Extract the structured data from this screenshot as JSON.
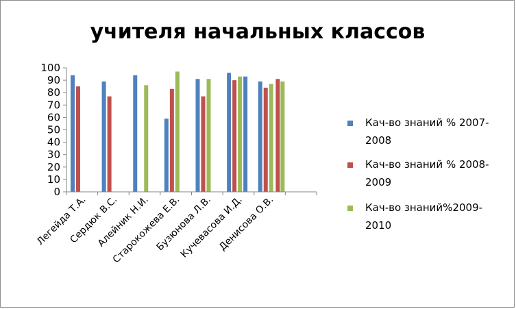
{
  "chart_data": {
    "type": "bar",
    "title": "учителя начальных классов",
    "xlabel": "",
    "ylabel": "",
    "ylim": [
      0,
      100
    ],
    "yticks": [
      0,
      10,
      20,
      30,
      40,
      50,
      60,
      70,
      80,
      90,
      100
    ],
    "grid": false,
    "legend_position": "right",
    "categories": [
      "Легейда Т.А.",
      "Сердюк В.С.",
      "Алейник Н.И.",
      "Старокожева Е.В.",
      "Бузюнова Л.В.",
      "Кучевасова И.Д.",
      "Денисова О.В."
    ],
    "series": [
      {
        "name": "Кач-во знаний % 2007-2008",
        "legend_lines": [
          "Кач-во знаний % 2007-",
          "2008"
        ],
        "color": "#4f81bd",
        "values": [
          94,
          89,
          94,
          59,
          91,
          96,
          89
        ]
      },
      {
        "name": "Кач-во знаний % 2008-2009",
        "legend_lines": [
          "Кач-во знаний % 2008-",
          "2009"
        ],
        "color": "#c0504d",
        "values": [
          85,
          77,
          null,
          83,
          77,
          90,
          84
        ]
      },
      {
        "name": "Кач-во знаний%2009-2010",
        "legend_lines": [
          "Кач-во знаний%2009-",
          "2010"
        ],
        "color": "#9bbb59",
        "values": [
          null,
          null,
          86,
          97,
          91,
          93,
          87
        ]
      }
    ],
    "extra_bars": [
      {
        "series_index": 0,
        "value": 93,
        "group_offset": 1
      },
      {
        "series_index": 1,
        "value": 91,
        "after_category": 6
      },
      {
        "series_index": 2,
        "value": 89,
        "after_category": 6
      }
    ]
  }
}
